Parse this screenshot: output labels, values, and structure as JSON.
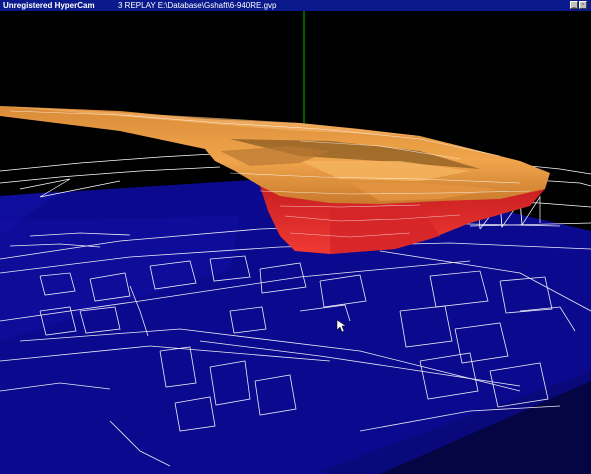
{
  "titlebar": {
    "app_title": "Unregistered HyperCam",
    "document_title": "3  REPLAY E:\\Database\\Gshaft\\6-940RE.gvp",
    "minimize_icon": "minimize-icon",
    "restore_icon": "restore-icon"
  },
  "viewport": {
    "icons": [
      "mouse-cursor-icon"
    ],
    "colors": {
      "background": "#000000",
      "ground_plane": "#0b0a8e",
      "ground_lines": "#ffffff",
      "shell_top": "#e89a40",
      "shell_bottom": "#e8282a",
      "axis_line": "#00c000",
      "titlebar": "#0a1a8c"
    }
  }
}
